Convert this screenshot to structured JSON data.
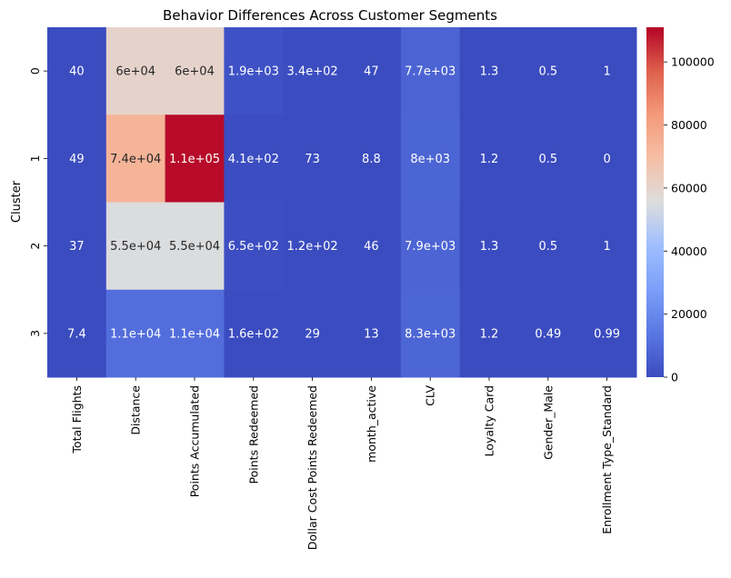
{
  "chart_data": {
    "type": "heatmap",
    "title": "Behavior Differences Across Customer Segments",
    "ylabel": "Cluster",
    "xlabel": "",
    "colormap": "coolwarm",
    "x_categories": [
      "Total Flights",
      "Distance",
      "Points Accumulated",
      "Points Redeemed",
      "Dollar Cost Points Redeemed",
      "month_active",
      "CLV",
      "Loyalty Card",
      "Gender_Male",
      "Enrollment Type_Standard"
    ],
    "y_categories": [
      "0",
      "1",
      "2",
      "3"
    ],
    "values": [
      [
        40,
        60000,
        60000,
        1900,
        340,
        47,
        7700,
        1.3,
        0.5,
        1
      ],
      [
        49,
        74000,
        110000,
        410,
        73,
        8.8,
        8000,
        1.2,
        0.5,
        0
      ],
      [
        37,
        55000,
        55000,
        650,
        120,
        46,
        7900,
        1.3,
        0.5,
        1
      ],
      [
        7.4,
        11000,
        11000,
        160,
        29,
        13,
        8300,
        1.2,
        0.49,
        0.99
      ]
    ],
    "annotations": [
      [
        "40",
        "6e+04",
        "6e+04",
        "1.9e+03",
        "3.4e+02",
        "47",
        "7.7e+03",
        "1.3",
        "0.5",
        "1"
      ],
      [
        "49",
        "7.4e+04",
        "1.1e+05",
        "4.1e+02",
        "73",
        "8.8",
        "8e+03",
        "1.2",
        "0.5",
        "0"
      ],
      [
        "37",
        "5.5e+04",
        "5.5e+04",
        "6.5e+02",
        "1.2e+02",
        "46",
        "7.9e+03",
        "1.3",
        "0.5",
        "1"
      ],
      [
        "7.4",
        "1.1e+04",
        "1.1e+04",
        "1.6e+02",
        "29",
        "13",
        "8.3e+03",
        "1.2",
        "0.49",
        "0.99"
      ]
    ],
    "vmin": 0,
    "vmax": 111000,
    "colorbar_ticks": [
      0,
      20000,
      40000,
      60000,
      80000,
      100000
    ],
    "colorbar_tick_labels": [
      "0",
      "20000",
      "40000",
      "60000",
      "80000",
      "100000"
    ]
  }
}
